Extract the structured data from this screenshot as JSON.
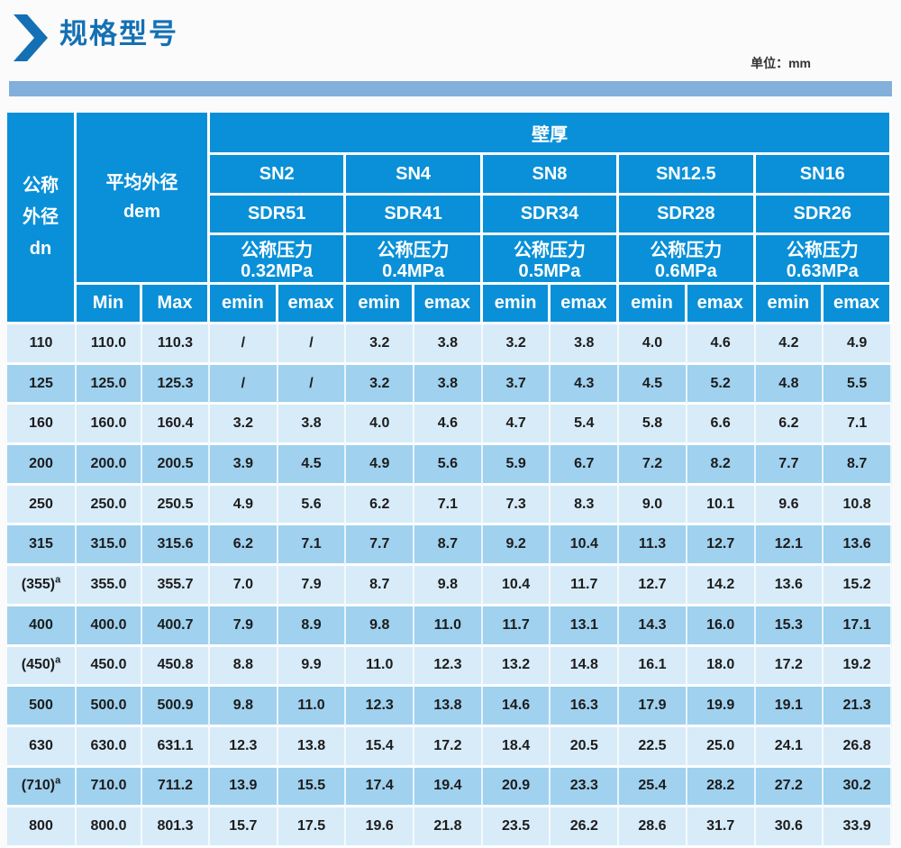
{
  "header": {
    "title": "规格型号",
    "unit_label": "单位：mm"
  },
  "table": {
    "wall_header": "壁厚",
    "dn_header": [
      "公称",
      "外径",
      "dn"
    ],
    "dem_header": [
      "平均外径",
      "dem"
    ],
    "min_label": "Min",
    "max_label": "Max",
    "emin_label": "emin",
    "emax_label": "emax",
    "groups": [
      {
        "sn": "SN2",
        "sdr": "SDR51",
        "pressure": "公称压力0.32MPa"
      },
      {
        "sn": "SN4",
        "sdr": "SDR41",
        "pressure": "公称压力0.4MPa"
      },
      {
        "sn": "SN8",
        "sdr": "SDR34",
        "pressure": "公称压力0.5MPa"
      },
      {
        "sn": "SN12.5",
        "sdr": "SDR28",
        "pressure": "公称压力0.6MPa"
      },
      {
        "sn": "SN16",
        "sdr": "SDR26",
        "pressure": "公称压力0.63MPa"
      }
    ],
    "rows": [
      {
        "dn": "110",
        "sup": "",
        "min": "110.0",
        "max": "110.3",
        "values": [
          "/",
          "/",
          "3.2",
          "3.8",
          "3.2",
          "3.8",
          "4.0",
          "4.6",
          "4.2",
          "4.9"
        ]
      },
      {
        "dn": "125",
        "sup": "",
        "min": "125.0",
        "max": "125.3",
        "values": [
          "/",
          "/",
          "3.2",
          "3.8",
          "3.7",
          "4.3",
          "4.5",
          "5.2",
          "4.8",
          "5.5"
        ]
      },
      {
        "dn": "160",
        "sup": "",
        "min": "160.0",
        "max": "160.4",
        "values": [
          "3.2",
          "3.8",
          "4.0",
          "4.6",
          "4.7",
          "5.4",
          "5.8",
          "6.6",
          "6.2",
          "7.1"
        ]
      },
      {
        "dn": "200",
        "sup": "",
        "min": "200.0",
        "max": "200.5",
        "values": [
          "3.9",
          "4.5",
          "4.9",
          "5.6",
          "5.9",
          "6.7",
          "7.2",
          "8.2",
          "7.7",
          "8.7"
        ]
      },
      {
        "dn": "250",
        "sup": "",
        "min": "250.0",
        "max": "250.5",
        "values": [
          "4.9",
          "5.6",
          "6.2",
          "7.1",
          "7.3",
          "8.3",
          "9.0",
          "10.1",
          "9.6",
          "10.8"
        ]
      },
      {
        "dn": "315",
        "sup": "",
        "min": "315.0",
        "max": "315.6",
        "values": [
          "6.2",
          "7.1",
          "7.7",
          "8.7",
          "9.2",
          "10.4",
          "11.3",
          "12.7",
          "12.1",
          "13.6"
        ]
      },
      {
        "dn": "(355)",
        "sup": "a",
        "min": "355.0",
        "max": "355.7",
        "values": [
          "7.0",
          "7.9",
          "8.7",
          "9.8",
          "10.4",
          "11.7",
          "12.7",
          "14.2",
          "13.6",
          "15.2"
        ]
      },
      {
        "dn": "400",
        "sup": "",
        "min": "400.0",
        "max": "400.7",
        "values": [
          "7.9",
          "8.9",
          "9.8",
          "11.0",
          "11.7",
          "13.1",
          "14.3",
          "16.0",
          "15.3",
          "17.1"
        ]
      },
      {
        "dn": "(450)",
        "sup": "a",
        "min": "450.0",
        "max": "450.8",
        "values": [
          "8.8",
          "9.9",
          "11.0",
          "12.3",
          "13.2",
          "14.8",
          "16.1",
          "18.0",
          "17.2",
          "19.2"
        ]
      },
      {
        "dn": "500",
        "sup": "",
        "min": "500.0",
        "max": "500.9",
        "values": [
          "9.8",
          "11.0",
          "12.3",
          "13.8",
          "14.6",
          "16.3",
          "17.9",
          "19.9",
          "19.1",
          "21.3"
        ]
      },
      {
        "dn": "630",
        "sup": "",
        "min": "630.0",
        "max": "631.1",
        "values": [
          "12.3",
          "13.8",
          "15.4",
          "17.2",
          "18.4",
          "20.5",
          "22.5",
          "25.0",
          "24.1",
          "26.8"
        ]
      },
      {
        "dn": "(710)",
        "sup": "a",
        "min": "710.0",
        "max": "711.2",
        "values": [
          "13.9",
          "15.5",
          "17.4",
          "19.4",
          "20.9",
          "23.3",
          "25.4",
          "28.2",
          "27.2",
          "30.2"
        ]
      },
      {
        "dn": "800",
        "sup": "",
        "min": "800.0",
        "max": "801.3",
        "values": [
          "15.7",
          "17.5",
          "19.6",
          "21.8",
          "23.5",
          "26.2",
          "28.6",
          "31.7",
          "30.6",
          "33.9"
        ]
      }
    ]
  },
  "colors": {
    "header_blue": "#0a90d8",
    "row_light": "#d8ebf8",
    "row_dark": "#a0d1ef",
    "bar_blue": "#82b0da",
    "title_blue": "#1470b4"
  }
}
